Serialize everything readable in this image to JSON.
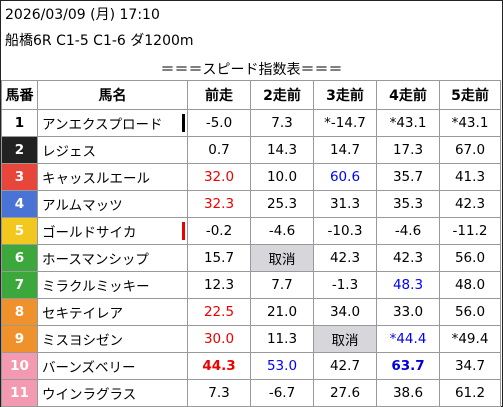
{
  "header": {
    "datetime": "2026/03/09 (月) 17:10",
    "race": "船橋6R C1-5 C1-6 ダ1200m",
    "table_title": "＝＝＝スピード指数表＝＝＝"
  },
  "columns": [
    "馬番",
    "馬名",
    "前走",
    "2走前",
    "3走前",
    "4走前",
    "5走前"
  ],
  "rows": [
    {
      "num": "1",
      "name": "アンエクスプロード",
      "v": [
        "-5.0",
        "7.3",
        "*-14.7",
        "*43.1",
        "*43.1"
      ]
    },
    {
      "num": "2",
      "name": "レジェス",
      "v": [
        "0.7",
        "14.3",
        "14.7",
        "17.3",
        "67.0"
      ]
    },
    {
      "num": "3",
      "name": "キャッスルエール",
      "v": [
        "32.0",
        "10.0",
        "60.6",
        "35.7",
        "41.3"
      ]
    },
    {
      "num": "4",
      "name": "アルムマッツ",
      "v": [
        "32.3",
        "25.3",
        "31.3",
        "35.3",
        "42.3"
      ]
    },
    {
      "num": "5",
      "name": "ゴールドサイカ",
      "v": [
        "-0.2",
        "-4.6",
        "-10.3",
        "-4.6",
        "-11.2"
      ]
    },
    {
      "num": "6",
      "name": "ホースマンシップ",
      "v": [
        "15.7",
        "取消",
        "42.3",
        "42.3",
        "56.0"
      ]
    },
    {
      "num": "7",
      "name": "ミラクルミッキー",
      "v": [
        "12.3",
        "7.7",
        "-1.3",
        "48.3",
        "48.0"
      ]
    },
    {
      "num": "8",
      "name": "セキテイレア",
      "v": [
        "22.5",
        "21.0",
        "34.0",
        "33.0",
        "56.0"
      ]
    },
    {
      "num": "9",
      "name": "ミスヨシゼン",
      "v": [
        "30.0",
        "11.3",
        "取消",
        "*44.4",
        "*49.4"
      ]
    },
    {
      "num": "10",
      "name": "バーンズベリー",
      "v": [
        "44.3",
        "53.0",
        "42.7",
        "63.7",
        "34.7"
      ]
    },
    {
      "num": "11",
      "name": "ウインラグラス",
      "v": [
        "7.3",
        "-6.7",
        "27.6",
        "38.6",
        "61.2"
      ]
    }
  ]
}
